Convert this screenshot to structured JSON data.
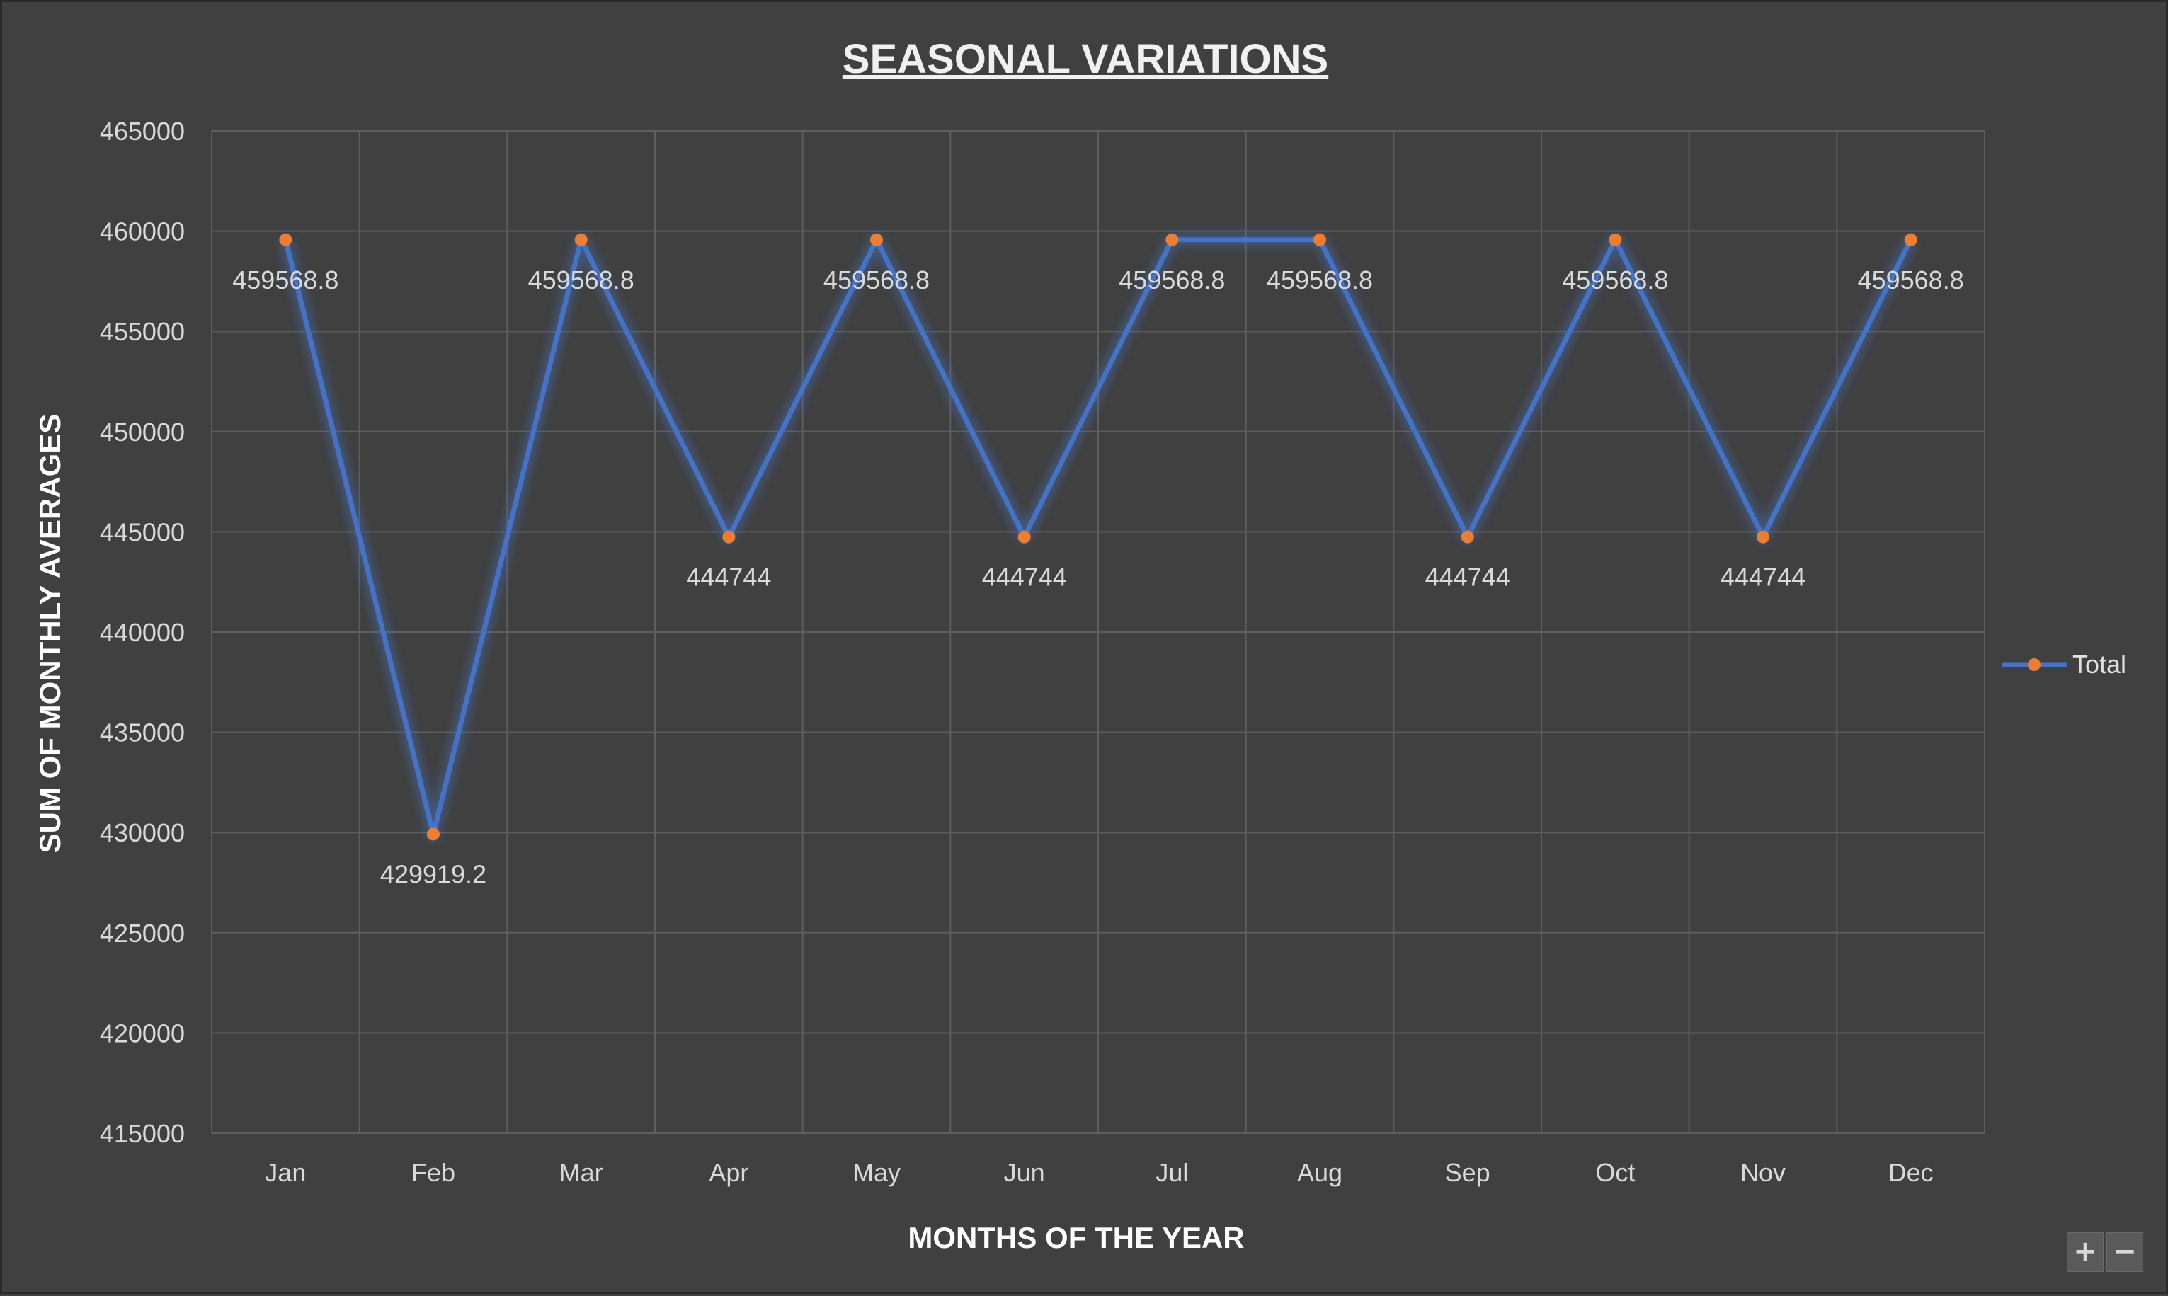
{
  "chart_data": {
    "type": "line",
    "title": "SEASONAL VARIATIONS",
    "xlabel": "MONTHS OF THE YEAR",
    "ylabel": "SUM OF MONTHLY AVERAGES",
    "ylim": [
      415000,
      465000
    ],
    "yticks": [
      415000,
      420000,
      425000,
      430000,
      435000,
      440000,
      445000,
      450000,
      455000,
      460000,
      465000
    ],
    "ytick_labels": [
      "415000",
      "420000",
      "425000",
      "430000",
      "435000",
      "440000",
      "445000",
      "450000",
      "455000",
      "460000",
      "465000"
    ],
    "categories": [
      "Jan",
      "Feb",
      "Mar",
      "Apr",
      "May",
      "Jun",
      "Jul",
      "Aug",
      "Sep",
      "Oct",
      "Nov",
      "Dec"
    ],
    "series": [
      {
        "name": "Total",
        "values": [
          459568.8,
          429919.2,
          459568.8,
          444744,
          459568.8,
          444744,
          459568.8,
          459568.8,
          444744,
          459568.8,
          444744,
          459568.8
        ],
        "labels": [
          "459568.8",
          "429919.2",
          "459568.8",
          "444744",
          "459568.8",
          "444744",
          "459568.8",
          "459568.8",
          "444744",
          "459568.8",
          "444744",
          "459568.8"
        ],
        "line_color": "#4472C4",
        "marker_color": "#ED7D31"
      }
    ],
    "grid": true,
    "legend_position": "right"
  },
  "controls": {
    "zoom_in_label": "+",
    "zoom_out_label": "−"
  }
}
